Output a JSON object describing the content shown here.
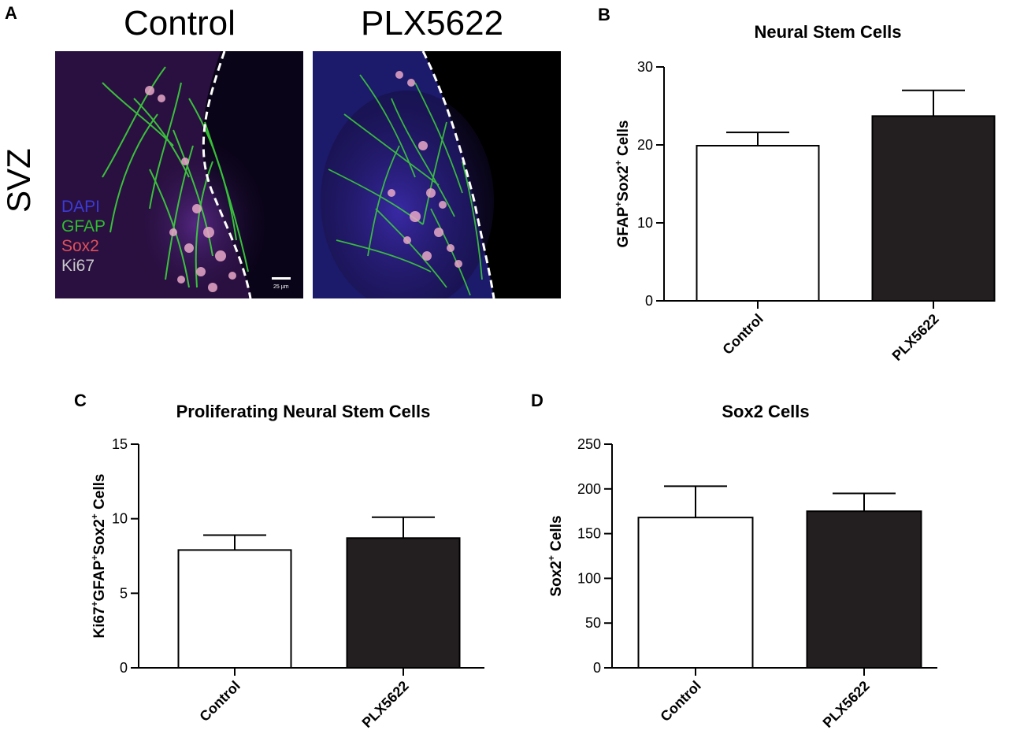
{
  "panel_a": {
    "letter": "A",
    "col_titles": [
      "Control",
      "PLX5622"
    ],
    "row_label": "SVZ",
    "legend": [
      {
        "text": "DAPI",
        "color": "#3b3bd6"
      },
      {
        "text": "GFAP",
        "color": "#2fbd2f"
      },
      {
        "text": "Sox2",
        "color": "#e0505a"
      },
      {
        "text": "Ki67",
        "color": "#c8c8c8"
      }
    ],
    "scale_bar": "25 µm"
  },
  "chart_data": [
    {
      "letter": "B",
      "type": "bar",
      "title": "Neural Stem Cells",
      "ylabel_parts": [
        [
          "GFAP",
          ""
        ],
        [
          "+",
          "sup"
        ],
        [
          "Sox2",
          ""
        ],
        [
          "+",
          "sup"
        ],
        [
          " Cells",
          ""
        ]
      ],
      "ylabel": "GFAP+Sox2+ Cells",
      "categories": [
        "Control",
        "PLX5622"
      ],
      "values": [
        19.9,
        23.7
      ],
      "errors": [
        1.7,
        3.3
      ],
      "bar_colors": [
        "#ffffff",
        "#231f20"
      ],
      "ylim": [
        0,
        30
      ],
      "yticks": [
        0,
        10,
        20,
        30
      ]
    },
    {
      "letter": "C",
      "type": "bar",
      "title": "Proliferating Neural Stem Cells",
      "ylabel_parts": [
        [
          "Ki67",
          ""
        ],
        [
          "+",
          "sup"
        ],
        [
          "GFAP",
          ""
        ],
        [
          "+",
          "sup"
        ],
        [
          "Sox2",
          ""
        ],
        [
          "+",
          "sup"
        ],
        [
          " Cells",
          ""
        ]
      ],
      "ylabel": "Ki67+GFAP+Sox2+ Cells",
      "categories": [
        "Control",
        "PLX5622"
      ],
      "values": [
        7.9,
        8.7
      ],
      "errors": [
        1.0,
        1.4
      ],
      "bar_colors": [
        "#ffffff",
        "#231f20"
      ],
      "ylim": [
        0,
        15
      ],
      "yticks": [
        0,
        5,
        10,
        15
      ]
    },
    {
      "letter": "D",
      "type": "bar",
      "title": "Sox2 Cells",
      "ylabel_parts": [
        [
          "Sox2",
          ""
        ],
        [
          "+",
          "sup"
        ],
        [
          " Cells",
          ""
        ]
      ],
      "ylabel": "Sox2+ Cells",
      "categories": [
        "Control",
        "PLX5622"
      ],
      "values": [
        168,
        175
      ],
      "errors": [
        35,
        20
      ],
      "bar_colors": [
        "#ffffff",
        "#231f20"
      ],
      "ylim": [
        0,
        250
      ],
      "yticks": [
        0,
        50,
        100,
        150,
        200,
        250
      ]
    }
  ]
}
